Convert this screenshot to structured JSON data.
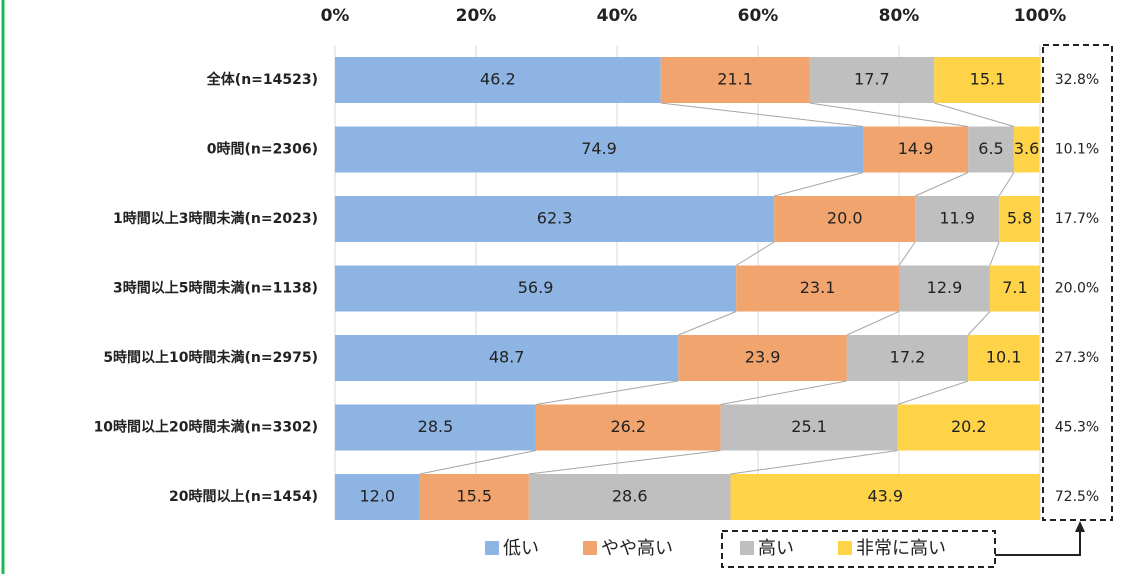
{
  "chart_data": {
    "type": "stacked-bar-horizontal",
    "categories": [
      "全体(n=14523)",
      "0時間(n=2306)",
      "1時間以上3時間未満(n=2023)",
      "3時間以上5時間未満(n=1138)",
      "5時間以上10時間未満(n=2975)",
      "10時間以上20時間未満(n=3302)",
      "20時間以上(n=1454)"
    ],
    "series": [
      {
        "name": "低い",
        "color": "#8db4e2",
        "values": [
          46.2,
          74.9,
          62.3,
          56.9,
          48.7,
          28.5,
          12.0
        ],
        "value_labels": [
          "46.2",
          "74.9",
          "62.3",
          "56.9",
          "48.7",
          "28.5",
          "12.0"
        ]
      },
      {
        "name": "やや高い",
        "color": "#f2a46f",
        "values": [
          21.1,
          14.9,
          20.0,
          23.1,
          23.9,
          26.2,
          15.5
        ],
        "value_labels": [
          "21.1",
          "14.9",
          "20.0",
          "23.1",
          "23.9",
          "26.2",
          "15.5"
        ]
      },
      {
        "name": "高い",
        "color": "#bfbfbf",
        "values": [
          17.7,
          6.5,
          11.9,
          12.9,
          17.2,
          25.1,
          28.6
        ],
        "value_labels": [
          "17.7",
          "6.5",
          "11.9",
          "12.9",
          "17.2",
          "25.1",
          "28.6"
        ]
      },
      {
        "name": "非常に高い",
        "color": "#ffd347",
        "values": [
          15.1,
          3.6,
          5.8,
          7.1,
          10.1,
          20.2,
          43.9
        ],
        "value_labels": [
          "15.1",
          "3.6",
          "5.8",
          "7.1",
          "10.1",
          "20.2",
          "43.9"
        ]
      }
    ],
    "high_totals": {
      "values": [
        32.8,
        10.1,
        17.7,
        20.0,
        27.3,
        45.3,
        72.5
      ],
      "value_labels": [
        "32.8%",
        "10.1%",
        "17.7%",
        "20.0%",
        "27.3%",
        "45.3%",
        "72.5%"
      ]
    },
    "xlim": [
      0,
      100
    ],
    "xticks": [
      {
        "value": 0,
        "label": "0%"
      },
      {
        "value": 20,
        "label": "20%"
      },
      {
        "value": 40,
        "label": "40%"
      },
      {
        "value": 60,
        "label": "60%"
      },
      {
        "value": 80,
        "label": "80%"
      },
      {
        "value": 100,
        "label": "100%"
      }
    ],
    "grid": true,
    "legend": "bottom"
  }
}
